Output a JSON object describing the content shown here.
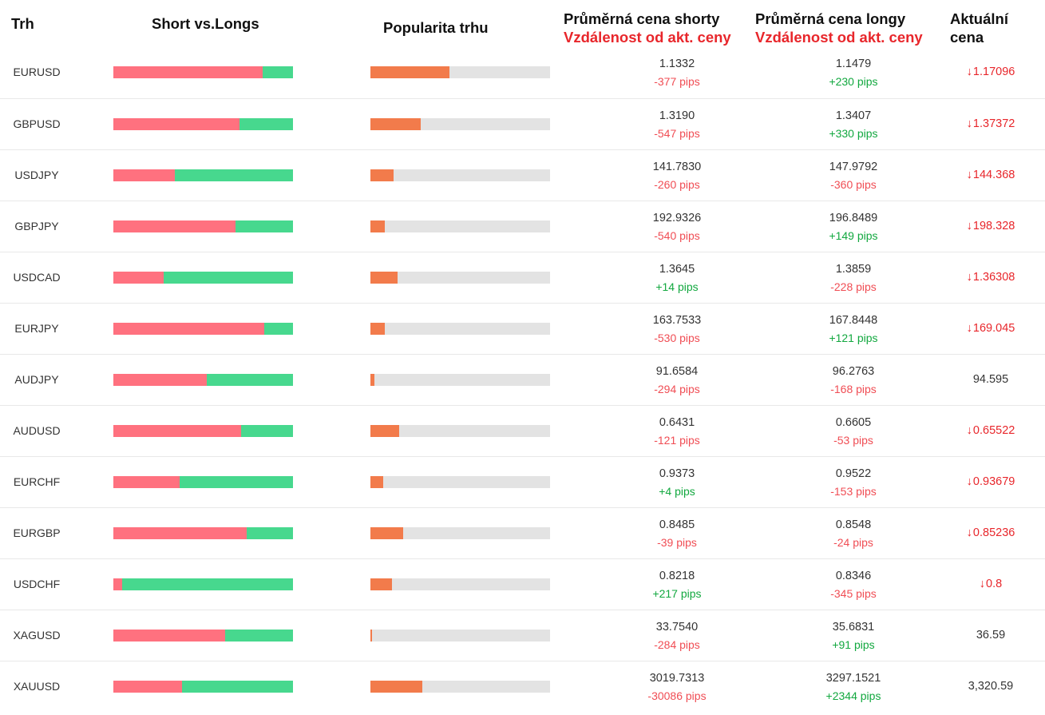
{
  "headers": {
    "market": "Trh",
    "short_vs_longs": "Short vs.Longs",
    "popularity": "Popularita trhu",
    "avg_short": "Průměrná cena shorty",
    "avg_short_sub": "Vzdálenost od akt. ceny",
    "avg_long": "Průměrná cena longy",
    "avg_long_sub": "Vzdálenost od akt. ceny",
    "current": "Aktuální cena"
  },
  "colors": {
    "short_bar": "#ff717f",
    "long_bar": "#47d88e",
    "popularity_fill": "#f27b4b",
    "popularity_track": "#e3e3e3",
    "negative": "#f04d54",
    "positive": "#12a83f",
    "price_down": "#e8262b"
  },
  "rows": [
    {
      "symbol": "EURUSD",
      "short_pct": 83,
      "popularity_pct": 44,
      "avg_short": "1.1332",
      "short_dist": "-377 pips",
      "avg_long": "1.1479",
      "long_dist": "+230 pips",
      "current": "1.17096",
      "down": true
    },
    {
      "symbol": "GBPUSD",
      "short_pct": 70,
      "popularity_pct": 28,
      "avg_short": "1.3190",
      "short_dist": "-547 pips",
      "avg_long": "1.3407",
      "long_dist": "+330 pips",
      "current": "1.37372",
      "down": true
    },
    {
      "symbol": "USDJPY",
      "short_pct": 34,
      "popularity_pct": 13,
      "avg_short": "141.7830",
      "short_dist": "-260 pips",
      "avg_long": "147.9792",
      "long_dist": "-360 pips",
      "current": "144.368",
      "down": true
    },
    {
      "symbol": "GBPJPY",
      "short_pct": 68,
      "popularity_pct": 8,
      "avg_short": "192.9326",
      "short_dist": "-540 pips",
      "avg_long": "196.8489",
      "long_dist": "+149 pips",
      "current": "198.328",
      "down": true
    },
    {
      "symbol": "USDCAD",
      "short_pct": 28,
      "popularity_pct": 15,
      "avg_short": "1.3645",
      "short_dist": "+14 pips",
      "avg_long": "1.3859",
      "long_dist": "-228 pips",
      "current": "1.36308",
      "down": true
    },
    {
      "symbol": "EURJPY",
      "short_pct": 84,
      "popularity_pct": 8,
      "avg_short": "163.7533",
      "short_dist": "-530 pips",
      "avg_long": "167.8448",
      "long_dist": "+121 pips",
      "current": "169.045",
      "down": true
    },
    {
      "symbol": "AUDJPY",
      "short_pct": 52,
      "popularity_pct": 2,
      "avg_short": "91.6584",
      "short_dist": "-294 pips",
      "avg_long": "96.2763",
      "long_dist": "-168 pips",
      "current": "94.595",
      "down": false
    },
    {
      "symbol": "AUDUSD",
      "short_pct": 71,
      "popularity_pct": 16,
      "avg_short": "0.6431",
      "short_dist": "-121 pips",
      "avg_long": "0.6605",
      "long_dist": "-53 pips",
      "current": "0.65522",
      "down": true
    },
    {
      "symbol": "EURCHF",
      "short_pct": 37,
      "popularity_pct": 7,
      "avg_short": "0.9373",
      "short_dist": "+4 pips",
      "avg_long": "0.9522",
      "long_dist": "-153 pips",
      "current": "0.93679",
      "down": true
    },
    {
      "symbol": "EURGBP",
      "short_pct": 74,
      "popularity_pct": 18,
      "avg_short": "0.8485",
      "short_dist": "-39 pips",
      "avg_long": "0.8548",
      "long_dist": "-24 pips",
      "current": "0.85236",
      "down": true
    },
    {
      "symbol": "USDCHF",
      "short_pct": 5,
      "popularity_pct": 12,
      "avg_short": "0.8218",
      "short_dist": "+217 pips",
      "avg_long": "0.8346",
      "long_dist": "-345 pips",
      "current": "0.8",
      "down": true
    },
    {
      "symbol": "XAGUSD",
      "short_pct": 62,
      "popularity_pct": 1,
      "avg_short": "33.7540",
      "short_dist": "-284 pips",
      "avg_long": "35.6831",
      "long_dist": "+91 pips",
      "current": "36.59",
      "down": false
    },
    {
      "symbol": "XAUUSD",
      "short_pct": 38,
      "popularity_pct": 29,
      "avg_short": "3019.7313",
      "short_dist": "-30086 pips",
      "avg_long": "3297.1521",
      "long_dist": "+2344 pips",
      "current": "3,320.59",
      "down": false
    }
  ]
}
